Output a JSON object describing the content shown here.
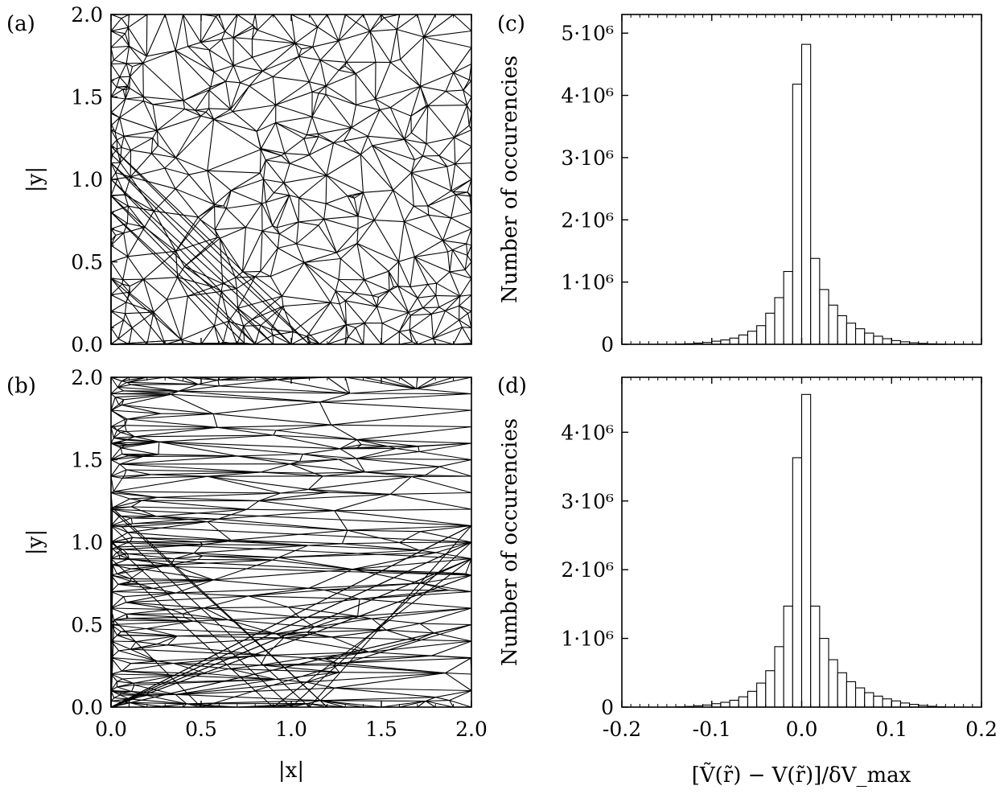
{
  "panels": {
    "a": {
      "label": "(a)",
      "xlabel": "",
      "ylabel": "|y|",
      "xlim": [
        0,
        2
      ],
      "ylim": [
        0,
        2
      ],
      "yticks": [
        "0.0",
        "0.5",
        "1.0",
        "1.5",
        "2.0"
      ],
      "xticks": []
    },
    "b": {
      "label": "(b)",
      "xlabel": "|x|",
      "ylabel": "|y|",
      "xlim": [
        0,
        2
      ],
      "ylim": [
        0,
        2
      ],
      "yticks": [
        "0.0",
        "0.5",
        "1.0",
        "1.5",
        "2.0"
      ],
      "xticks": [
        "0.0",
        "0.5",
        "1.0",
        "1.5",
        "2.0"
      ]
    },
    "c": {
      "label": "(c)",
      "ylabel": "Number of occurencies",
      "ytick_labels": [
        "0",
        "1·10⁶",
        "2·10⁶",
        "3·10⁶",
        "4·10⁶",
        "5·10⁶"
      ]
    },
    "d": {
      "label": "(d)",
      "ylabel": "Number of occurencies",
      "ytick_labels": [
        "0",
        "1·10⁶",
        "2·10⁶",
        "3·10⁶",
        "4·10⁶"
      ],
      "xtick_labels": [
        "-0.2",
        "-0.1",
        "0.0",
        "0.1",
        "0.2"
      ],
      "xlabel": "[Ṽ(r̃) − V(r̃)]/δV_max"
    }
  },
  "chart_data": [
    {
      "panel": "c",
      "type": "bar",
      "xlim": [
        -0.2,
        0.2
      ],
      "ylim": [
        0,
        5300000
      ],
      "bin_width": 0.01,
      "bin_centers": [
        -0.135,
        -0.125,
        -0.115,
        -0.105,
        -0.095,
        -0.085,
        -0.075,
        -0.065,
        -0.055,
        -0.045,
        -0.035,
        -0.025,
        -0.015,
        -0.005,
        0.005,
        0.015,
        0.025,
        0.035,
        0.045,
        0.055,
        0.065,
        0.075,
        0.085,
        0.095,
        0.105,
        0.115,
        0.125,
        0.135,
        0.145,
        0.155
      ],
      "values": [
        5000,
        10000,
        20000,
        30000,
        50000,
        70000,
        100000,
        150000,
        210000,
        300000,
        500000,
        750000,
        1170000,
        4180000,
        4820000,
        1380000,
        880000,
        630000,
        460000,
        340000,
        250000,
        180000,
        130000,
        90000,
        60000,
        40000,
        25000,
        15000,
        8000,
        4000
      ],
      "yticks": [
        0,
        1000000,
        2000000,
        3000000,
        4000000,
        5000000
      ],
      "xticks": [
        -0.2,
        -0.1,
        0.0,
        0.1,
        0.2
      ]
    },
    {
      "panel": "d",
      "type": "bar",
      "xlim": [
        -0.2,
        0.2
      ],
      "ylim": [
        0,
        4800000
      ],
      "bin_width": 0.01,
      "bin_centers": [
        -0.135,
        -0.125,
        -0.115,
        -0.105,
        -0.095,
        -0.085,
        -0.075,
        -0.065,
        -0.055,
        -0.045,
        -0.035,
        -0.025,
        -0.015,
        -0.005,
        0.005,
        0.015,
        0.025,
        0.035,
        0.045,
        0.055,
        0.065,
        0.075,
        0.085,
        0.095,
        0.105,
        0.115,
        0.125,
        0.135,
        0.145,
        0.155
      ],
      "values": [
        5000,
        10000,
        20000,
        30000,
        50000,
        70000,
        100000,
        150000,
        230000,
        350000,
        530000,
        880000,
        1470000,
        3630000,
        4550000,
        1470000,
        1000000,
        690000,
        500000,
        370000,
        280000,
        210000,
        160000,
        120000,
        90000,
        60000,
        40000,
        25000,
        12000,
        5000
      ],
      "yticks": [
        0,
        1000000,
        2000000,
        3000000,
        4000000
      ],
      "xticks": [
        -0.2,
        -0.1,
        0.0,
        0.1,
        0.2
      ]
    }
  ]
}
